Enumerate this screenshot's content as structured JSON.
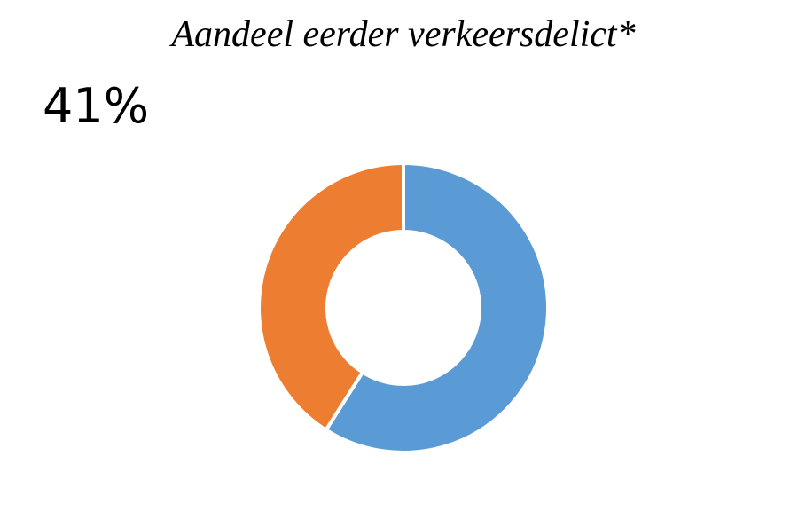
{
  "chart_data": {
    "type": "donut",
    "title": "Aandeel eerder verkeersdelict*",
    "values": [
      59,
      41
    ],
    "value_labels": [
      null,
      "41%"
    ],
    "colors": [
      "#5b9bd5",
      "#ed7d31"
    ]
  }
}
